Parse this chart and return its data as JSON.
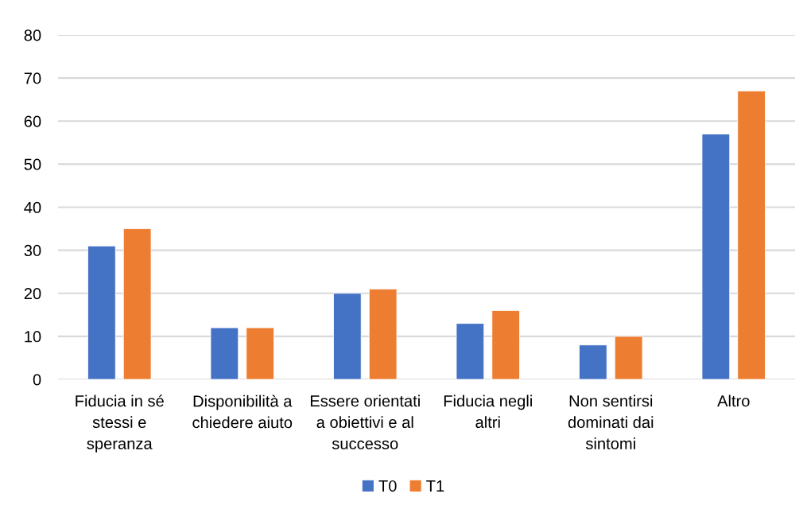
{
  "chart_data": {
    "type": "bar",
    "categories": [
      "Fiducia in sé\nstessi e\nsperanza",
      "Disponibilità a\nchiedere aiuto",
      "Essere orientati\na obiettivi e al\nsuccesso",
      "Fiducia negli\naltri",
      "Non sentirsi\ndominati dai\nsintomi",
      "Altro"
    ],
    "series": [
      {
        "name": "T0",
        "color": "#4472c4",
        "values": [
          31,
          12,
          20,
          13,
          8,
          57
        ]
      },
      {
        "name": "T1",
        "color": "#ed7d31",
        "values": [
          35,
          12,
          21,
          16,
          10,
          67
        ]
      }
    ],
    "ylim": [
      0,
      80
    ],
    "yticks": [
      0,
      10,
      20,
      30,
      40,
      50,
      60,
      70,
      80
    ],
    "grid": "y",
    "legend": "bottom"
  }
}
